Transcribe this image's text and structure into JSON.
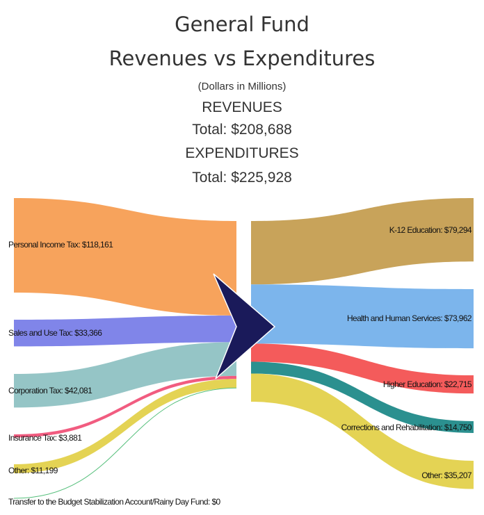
{
  "chart_data": {
    "type": "sankey",
    "title": "General Fund",
    "subtitle": "Revenues vs Expenditures",
    "units_note": "(Dollars in Millions)",
    "revenues": {
      "heading": "REVENUES",
      "total_label": "Total: $208,688",
      "total": 208688,
      "items": [
        {
          "label": "Personal Income Tax: $118,161",
          "value": 118161,
          "color": "#f7a35c"
        },
        {
          "label": "Sales and Use Tax: $33,366",
          "value": 33366,
          "color": "#8085e9"
        },
        {
          "label": "Corporation Tax: $42,081",
          "value": 42081,
          "color": "#95c5c6"
        },
        {
          "label": "Insurance Tax: $3,881",
          "value": 3881,
          "color": "#f15c80"
        },
        {
          "label": "Other: $11,199",
          "value": 11199,
          "color": "#e4d354"
        },
        {
          "label": "Transfer to the Budget Stabilization Account/Rainy Day Fund: $0",
          "value": 0,
          "color": "#55bf7b"
        }
      ]
    },
    "expenditures": {
      "heading": "EXPENDITURES",
      "total_label": "Total: $225,928",
      "total": 225928,
      "items": [
        {
          "label": "K-12 Education: $79,294",
          "value": 79294,
          "color": "#c8a35a"
        },
        {
          "label": "Health and Human Services: $73,962",
          "value": 73962,
          "color": "#7cb5ec"
        },
        {
          "label": "Higher Education: $22,715",
          "value": 22715,
          "color": "#f45b5b"
        },
        {
          "label": "Corrections and Rehabilitation: $14,750",
          "value": 14750,
          "color": "#2b908f"
        },
        {
          "label": "Other: $35,207",
          "value": 35207,
          "color": "#e4d354"
        }
      ]
    },
    "center_icon": "chevron-right-icon",
    "center_icon_color": "#1a1a5a"
  }
}
